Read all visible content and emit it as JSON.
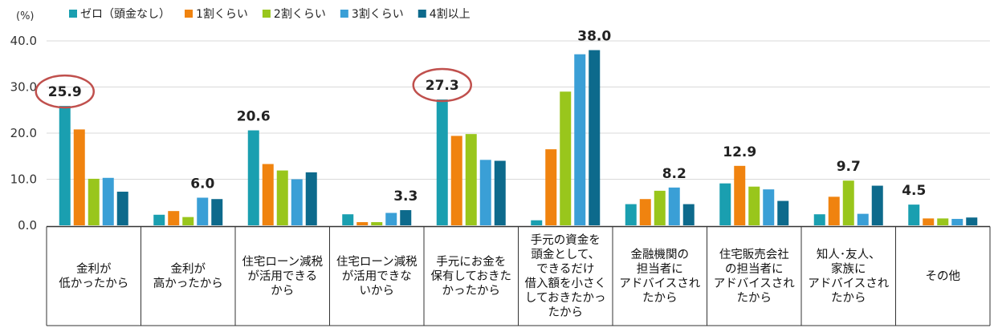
{
  "chart_data": {
    "type": "bar",
    "unit_label": "(%)",
    "ylim": [
      0,
      40
    ],
    "yticks": [
      "0.0",
      "10.0",
      "20.0",
      "30.0",
      "40.0"
    ],
    "grid": true,
    "legend_position": "top",
    "series": [
      {
        "name": "ゼロ（頭金なし）",
        "color": "#1a9fb0",
        "values": [
          25.9,
          2.3,
          20.6,
          2.4,
          27.3,
          1.1,
          4.6,
          9.1,
          2.4,
          4.5
        ]
      },
      {
        "name": "1割くらい",
        "color": "#f0830f",
        "values": [
          20.8,
          3.1,
          13.3,
          0.7,
          19.4,
          16.5,
          5.7,
          12.9,
          6.2,
          1.5
        ]
      },
      {
        "name": "2割くらい",
        "color": "#99c61c",
        "values": [
          10.1,
          1.8,
          11.9,
          0.7,
          19.8,
          29.0,
          7.5,
          8.4,
          9.7,
          1.5
        ]
      },
      {
        "name": "3割くらい",
        "color": "#3a9fd6",
        "values": [
          10.3,
          6.0,
          10.0,
          2.7,
          14.2,
          37.1,
          8.2,
          7.8,
          2.5,
          1.4
        ]
      },
      {
        "name": "4割以上",
        "color": "#0d6a8c",
        "values": [
          7.3,
          5.7,
          11.5,
          3.3,
          14.0,
          38.0,
          4.6,
          5.3,
          8.6,
          1.7
        ]
      }
    ],
    "categories": [
      "金利が\n低かったから",
      "金利が\n高かったから",
      "住宅ローン減税\nが活用できる\nから",
      "住宅ローン減税\nが活用できな\nいから",
      "手元にお金を\n保有しておきた\nかったから",
      "手元の資金を\n頭金として、\nできるだけ\n借入額を小さく\nしておきたかっ\nたから",
      "金融機関の\n担当者に\nアドバイスされ\nたから",
      "住宅販売会社\nの担当者に\nアドバイスされ\nたから",
      "知人･友人、\n家族に\nアドバイスされ\nたから",
      "その他"
    ],
    "data_labels": [
      {
        "category": 0,
        "series": 0,
        "text": "25.9",
        "circled": true
      },
      {
        "category": 1,
        "series": 3,
        "text": "6.0",
        "circled": false
      },
      {
        "category": 2,
        "series": 0,
        "text": "20.6",
        "circled": false
      },
      {
        "category": 3,
        "series": 4,
        "text": "3.3",
        "circled": false
      },
      {
        "category": 4,
        "series": 0,
        "text": "27.3",
        "circled": true
      },
      {
        "category": 5,
        "series": 4,
        "text": "38.0",
        "circled": false
      },
      {
        "category": 6,
        "series": 3,
        "text": "8.2",
        "circled": false
      },
      {
        "category": 7,
        "series": 1,
        "text": "12.9",
        "circled": false
      },
      {
        "category": 8,
        "series": 2,
        "text": "9.7",
        "circled": false
      },
      {
        "category": 9,
        "series": 0,
        "text": "4.5",
        "circled": false
      }
    ],
    "highlight_color": "#c0504d"
  }
}
